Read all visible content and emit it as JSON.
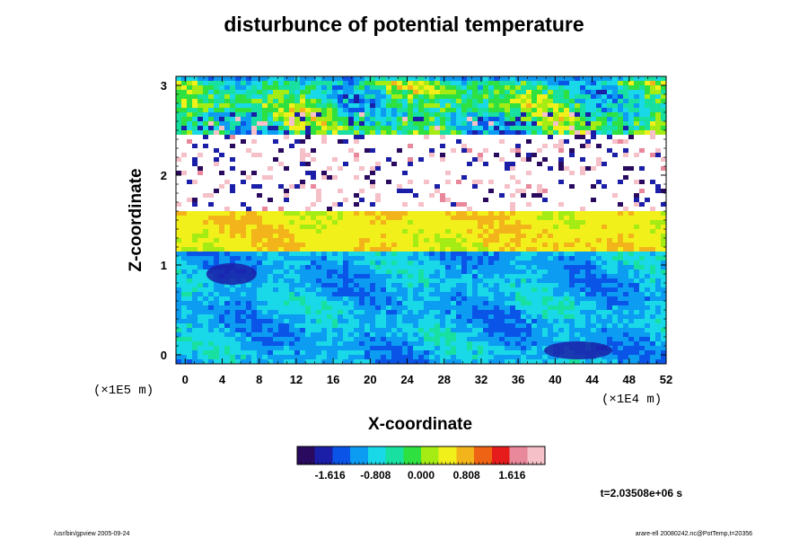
{
  "chart_data": {
    "type": "heatmap",
    "title": "disturbunce of potential temperature",
    "xlabel": "X-coordinate",
    "ylabel": "Z-coordinate",
    "x_scale_note": "(×1E4 m)",
    "y_scale_note": "(×1E5 m)",
    "xlim": [
      -1,
      52
    ],
    "ylim": [
      -0.1,
      3.1
    ],
    "x_ticks": [
      "0",
      "4",
      "8",
      "12",
      "16",
      "20",
      "24",
      "28",
      "32",
      "36",
      "40",
      "44",
      "48",
      "52"
    ],
    "x_tick_values": [
      0,
      4,
      8,
      12,
      16,
      20,
      24,
      28,
      32,
      36,
      40,
      44,
      48,
      52
    ],
    "y_ticks": [
      "0",
      "1",
      "2",
      "3"
    ],
    "y_tick_values": [
      0,
      1,
      2,
      3
    ],
    "colorbar": {
      "min": -2.2,
      "max": 2.2,
      "tick_labels": [
        "-1.616",
        "-0.808",
        "0.000",
        "0.808",
        "1.616"
      ],
      "tick_values": [
        -1.616,
        -0.808,
        0.0,
        0.808,
        1.616
      ],
      "colors": [
        "#2a0a5e",
        "#1b1fa8",
        "#0a55e8",
        "#0c9cf2",
        "#19d8e8",
        "#17e0a0",
        "#2ee040",
        "#a4ec14",
        "#f2f01a",
        "#f2b41a",
        "#ef6414",
        "#e61c1c",
        "#e8889a",
        "#f5c0c8"
      ]
    },
    "field_bands": [
      {
        "z": [
          2.5,
          3.1
        ],
        "value_range": [
          -1.7,
          0.9
        ],
        "description": "green with red and blue blobs"
      },
      {
        "z": [
          1.65,
          2.5
        ],
        "value_range": [
          -2.2,
          2.2
        ],
        "description": "white/out-of-range layer with red-blue stripes"
      },
      {
        "z": [
          1.2,
          1.65
        ],
        "value_range": [
          0.1,
          0.9
        ],
        "description": "green-yellow band"
      },
      {
        "z": [
          -0.1,
          1.2
        ],
        "value_range": [
          -1.6,
          -0.4
        ],
        "description": "light blue to cyan turbulent layer"
      }
    ]
  },
  "time_label": "t=2.03508e+06 s",
  "footer": {
    "left": "/usr/bin/gpview 2005-09-24",
    "right": "arare-ell 20080242.nc@PotTemp,t=20356"
  }
}
